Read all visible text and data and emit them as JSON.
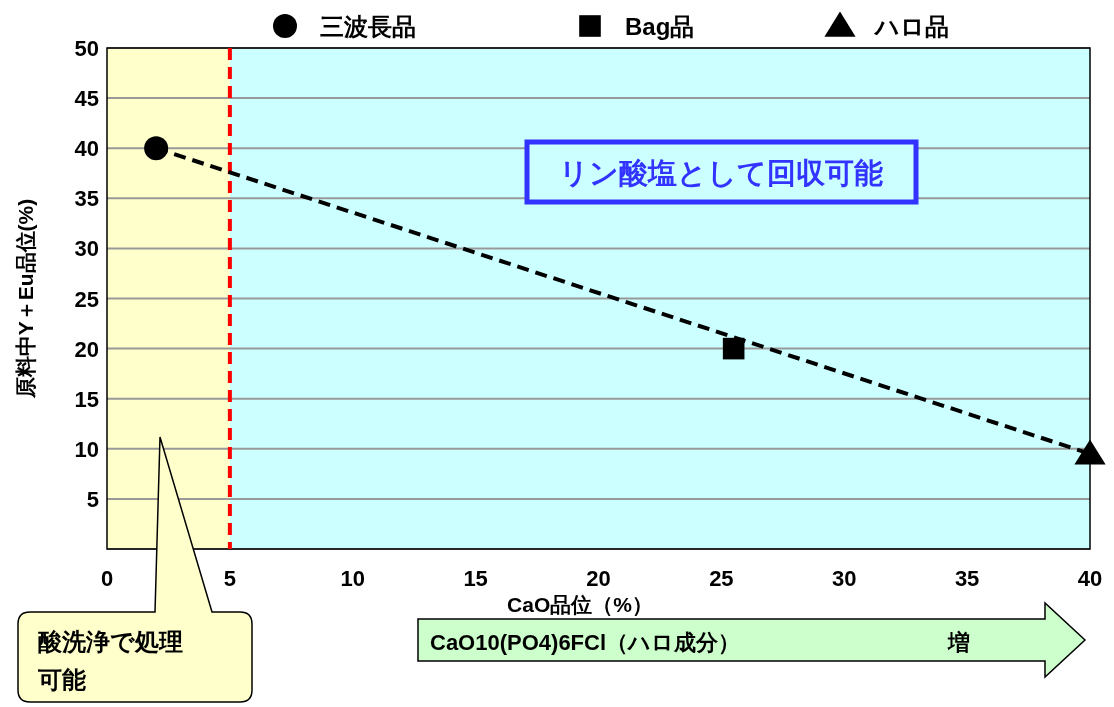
{
  "chart_data": {
    "type": "scatter",
    "xlabel": "CaO品位（%）",
    "ylabel": "原料中Y＋Eu品位(%)",
    "xlim": [
      0,
      40
    ],
    "ylim": [
      0,
      50
    ],
    "xticks": [
      0,
      5,
      10,
      15,
      20,
      25,
      30,
      35,
      40
    ],
    "yticks": [
      {
        "value": 0,
        "label": null
      },
      5,
      10,
      15,
      20,
      25,
      30,
      35,
      40,
      45,
      50
    ],
    "grid": "y",
    "legend": "top",
    "series": [
      {
        "type": "line",
        "color": "#000000",
        "x": [
          2,
          40
        ],
        "values": [
          40,
          9.5
        ],
        "line_style": "dashed",
        "marker": "none"
      },
      {
        "name": "三波長品",
        "color": "#000000",
        "x": [
          2
        ],
        "values": [
          40
        ],
        "marker": "circle"
      },
      {
        "name": "Bag品",
        "color": "#000000",
        "x": [
          25.5
        ],
        "values": [
          20
        ],
        "marker": "square"
      },
      {
        "name": "ハロ品",
        "color": "#000000",
        "x": [
          40
        ],
        "values": [
          9.5
        ],
        "marker": "triangle"
      }
    ],
    "bands": [
      {
        "axis": "x",
        "from": 0,
        "to": 5,
        "color": "#ffffcc"
      },
      {
        "axis": "x",
        "from": 5,
        "to": 40,
        "color": "#ccffff"
      }
    ],
    "ref_lines": [
      {
        "axis": "x",
        "value": 5,
        "color": "#ff0000",
        "line_style": "dashed"
      }
    ],
    "annotations": [
      "リン酸塩として回収可能",
      "酸洗浄で処理可能",
      "CaO10(PO4)6FCl（ハロ成分）",
      "増"
    ]
  }
}
